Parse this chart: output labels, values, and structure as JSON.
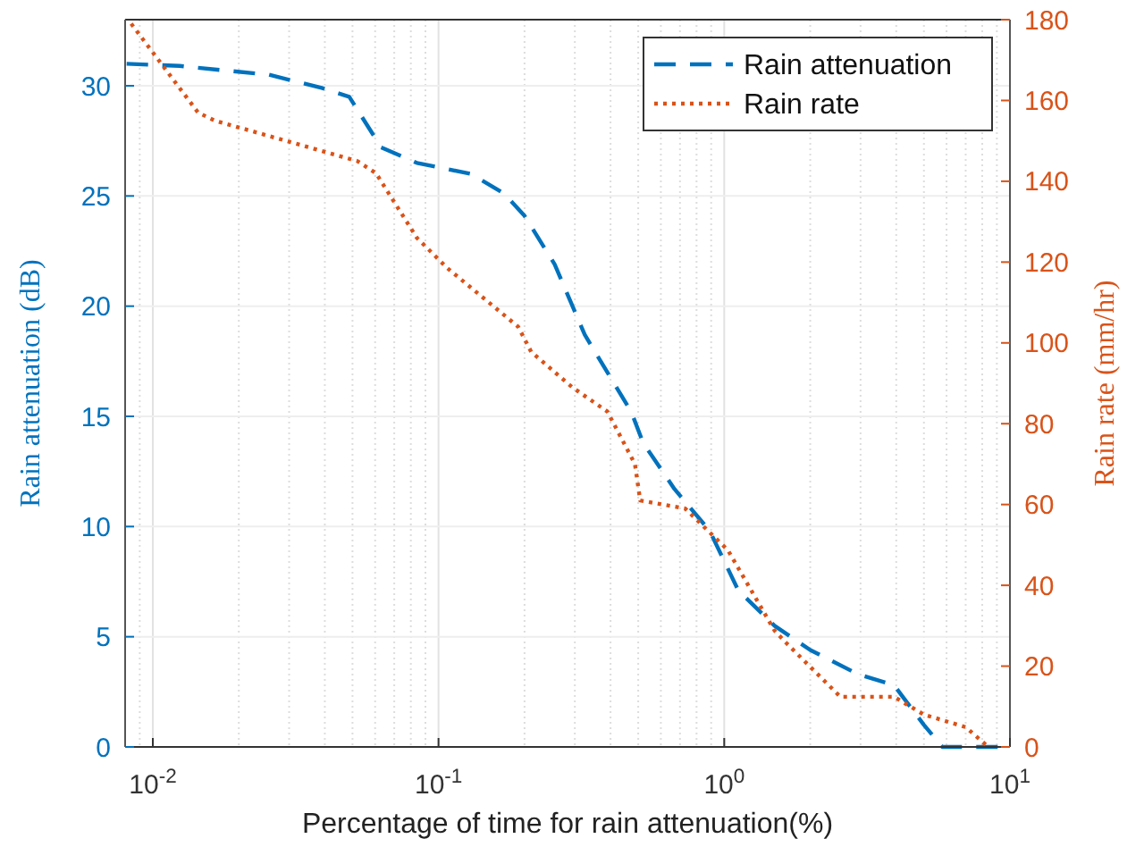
{
  "chart_data": {
    "type": "line",
    "xlabel": "Percentage of time for rain attenuation(%)",
    "ylabel": "Rain attenuation (dB)",
    "y2label": "Rain rate (mm/hr)",
    "log": "x",
    "grid": true,
    "legend": "top right",
    "xlim": [
      0.008,
      10
    ],
    "xticks": [
      {
        "value": 0.01,
        "label": "10$^{-2}$"
      },
      {
        "value": 0.1,
        "label": "10$^{-1}$"
      },
      {
        "value": 1,
        "label": "10$^{0}$"
      },
      {
        "value": 10,
        "label": "10$^{1}$"
      }
    ],
    "ylim": [
      0,
      33
    ],
    "yticks": [
      0,
      5,
      10,
      15,
      20,
      25,
      30
    ],
    "y2lim": [
      0,
      180
    ],
    "y2ticks": [
      0,
      20,
      40,
      60,
      80,
      100,
      120,
      140,
      160,
      180
    ],
    "series": [
      {
        "name": "Rain attenuation",
        "color": "#0072bd",
        "line_style": "dashed",
        "x": [
          0.0081,
          0.0124,
          0.0255,
          0.039,
          0.0487,
          0.063,
          0.084,
          0.13,
          0.17,
          0.2,
          0.255,
          0.325,
          0.473,
          0.52,
          0.67,
          0.89,
          1.12,
          1.5,
          2.0,
          2.94,
          3.93,
          5.0,
          5.8,
          9.3
        ],
        "values": [
          31.0,
          30.9,
          30.5,
          29.9,
          29.5,
          27.2,
          26.5,
          26.0,
          25.1,
          24.1,
          21.9,
          18.7,
          15.2,
          13.8,
          11.7,
          9.8,
          7.1,
          5.5,
          4.4,
          3.3,
          2.8,
          1.0,
          0,
          0
        ]
      },
      {
        "name": "Rain rate",
        "color": "#d95319",
        "line_style": "dotted",
        "axis": "y2",
        "x": [
          0.0084,
          0.0144,
          0.0165,
          0.052,
          0.0604,
          0.084,
          0.107,
          0.19,
          0.211,
          0.294,
          0.39,
          0.487,
          0.508,
          0.73,
          1.03,
          1.5,
          1.65,
          2.55,
          3.93,
          5.0,
          7.0,
          8.4
        ],
        "values": [
          179,
          157,
          155,
          145,
          142,
          126,
          118.6,
          104,
          97.8,
          89,
          83,
          70,
          61,
          59,
          48.7,
          28.8,
          25.7,
          12.4,
          12.4,
          8,
          4.9,
          0
        ]
      }
    ]
  }
}
